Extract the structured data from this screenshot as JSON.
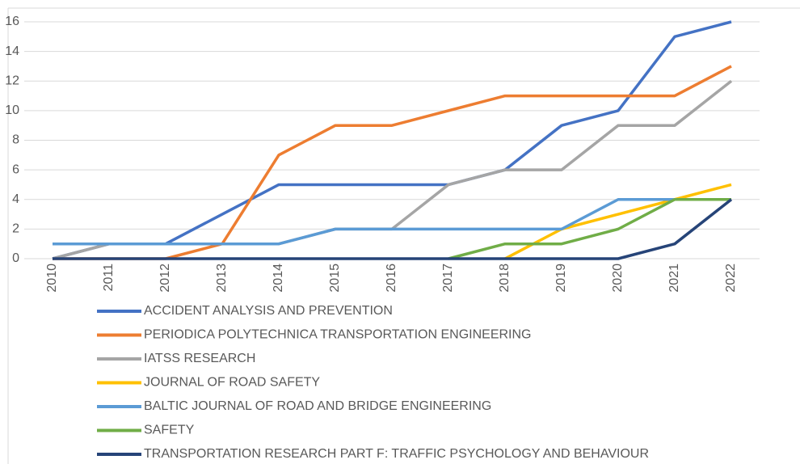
{
  "chart_data": {
    "type": "line",
    "categories": [
      "2010",
      "2011",
      "2012",
      "2013",
      "2014",
      "2015",
      "2016",
      "2017",
      "2018",
      "2019",
      "2020",
      "2021",
      "2022"
    ],
    "series": [
      {
        "name": "ACCIDENT ANALYSIS AND PREVENTION",
        "color": "#4472c4",
        "values": [
          0,
          1,
          1,
          3,
          5,
          5,
          5,
          5,
          6,
          9,
          10,
          15,
          16
        ]
      },
      {
        "name": "PERIODICA POLYTECHNICA TRANSPORTATION ENGINEERING",
        "color": "#ed7d31",
        "values": [
          0,
          0,
          0,
          1,
          7,
          9,
          9,
          10,
          11,
          11,
          11,
          11,
          13
        ]
      },
      {
        "name": "IATSS RESEARCH",
        "color": "#a5a5a5",
        "values": [
          0,
          1,
          1,
          1,
          1,
          2,
          2,
          5,
          6,
          6,
          9,
          9,
          12
        ]
      },
      {
        "name": "JOURNAL OF ROAD SAFETY",
        "color": "#ffc000",
        "values": [
          null,
          null,
          null,
          null,
          null,
          null,
          null,
          null,
          0,
          2,
          3,
          4,
          5
        ]
      },
      {
        "name": "BALTIC JOURNAL OF ROAD AND BRIDGE ENGINEERING",
        "color": "#5b9bd5",
        "values": [
          1,
          1,
          1,
          1,
          1,
          2,
          2,
          2,
          2,
          2,
          4,
          4,
          4
        ]
      },
      {
        "name": "SAFETY",
        "color": "#70ad47",
        "values": [
          null,
          null,
          null,
          null,
          null,
          null,
          null,
          0,
          1,
          1,
          2,
          4,
          4
        ]
      },
      {
        "name": "TRANSPORTATION RESEARCH PART F: TRAFFIC PSYCHOLOGY AND BEHAVIOUR",
        "color": "#264478",
        "values": [
          0,
          0,
          0,
          0,
          0,
          0,
          0,
          0,
          0,
          0,
          0,
          1,
          4
        ]
      }
    ],
    "ylim": [
      0,
      16
    ],
    "yticks": [
      0,
      2,
      4,
      6,
      8,
      10,
      12,
      14,
      16
    ],
    "grid": true,
    "legend": "bottom"
  }
}
